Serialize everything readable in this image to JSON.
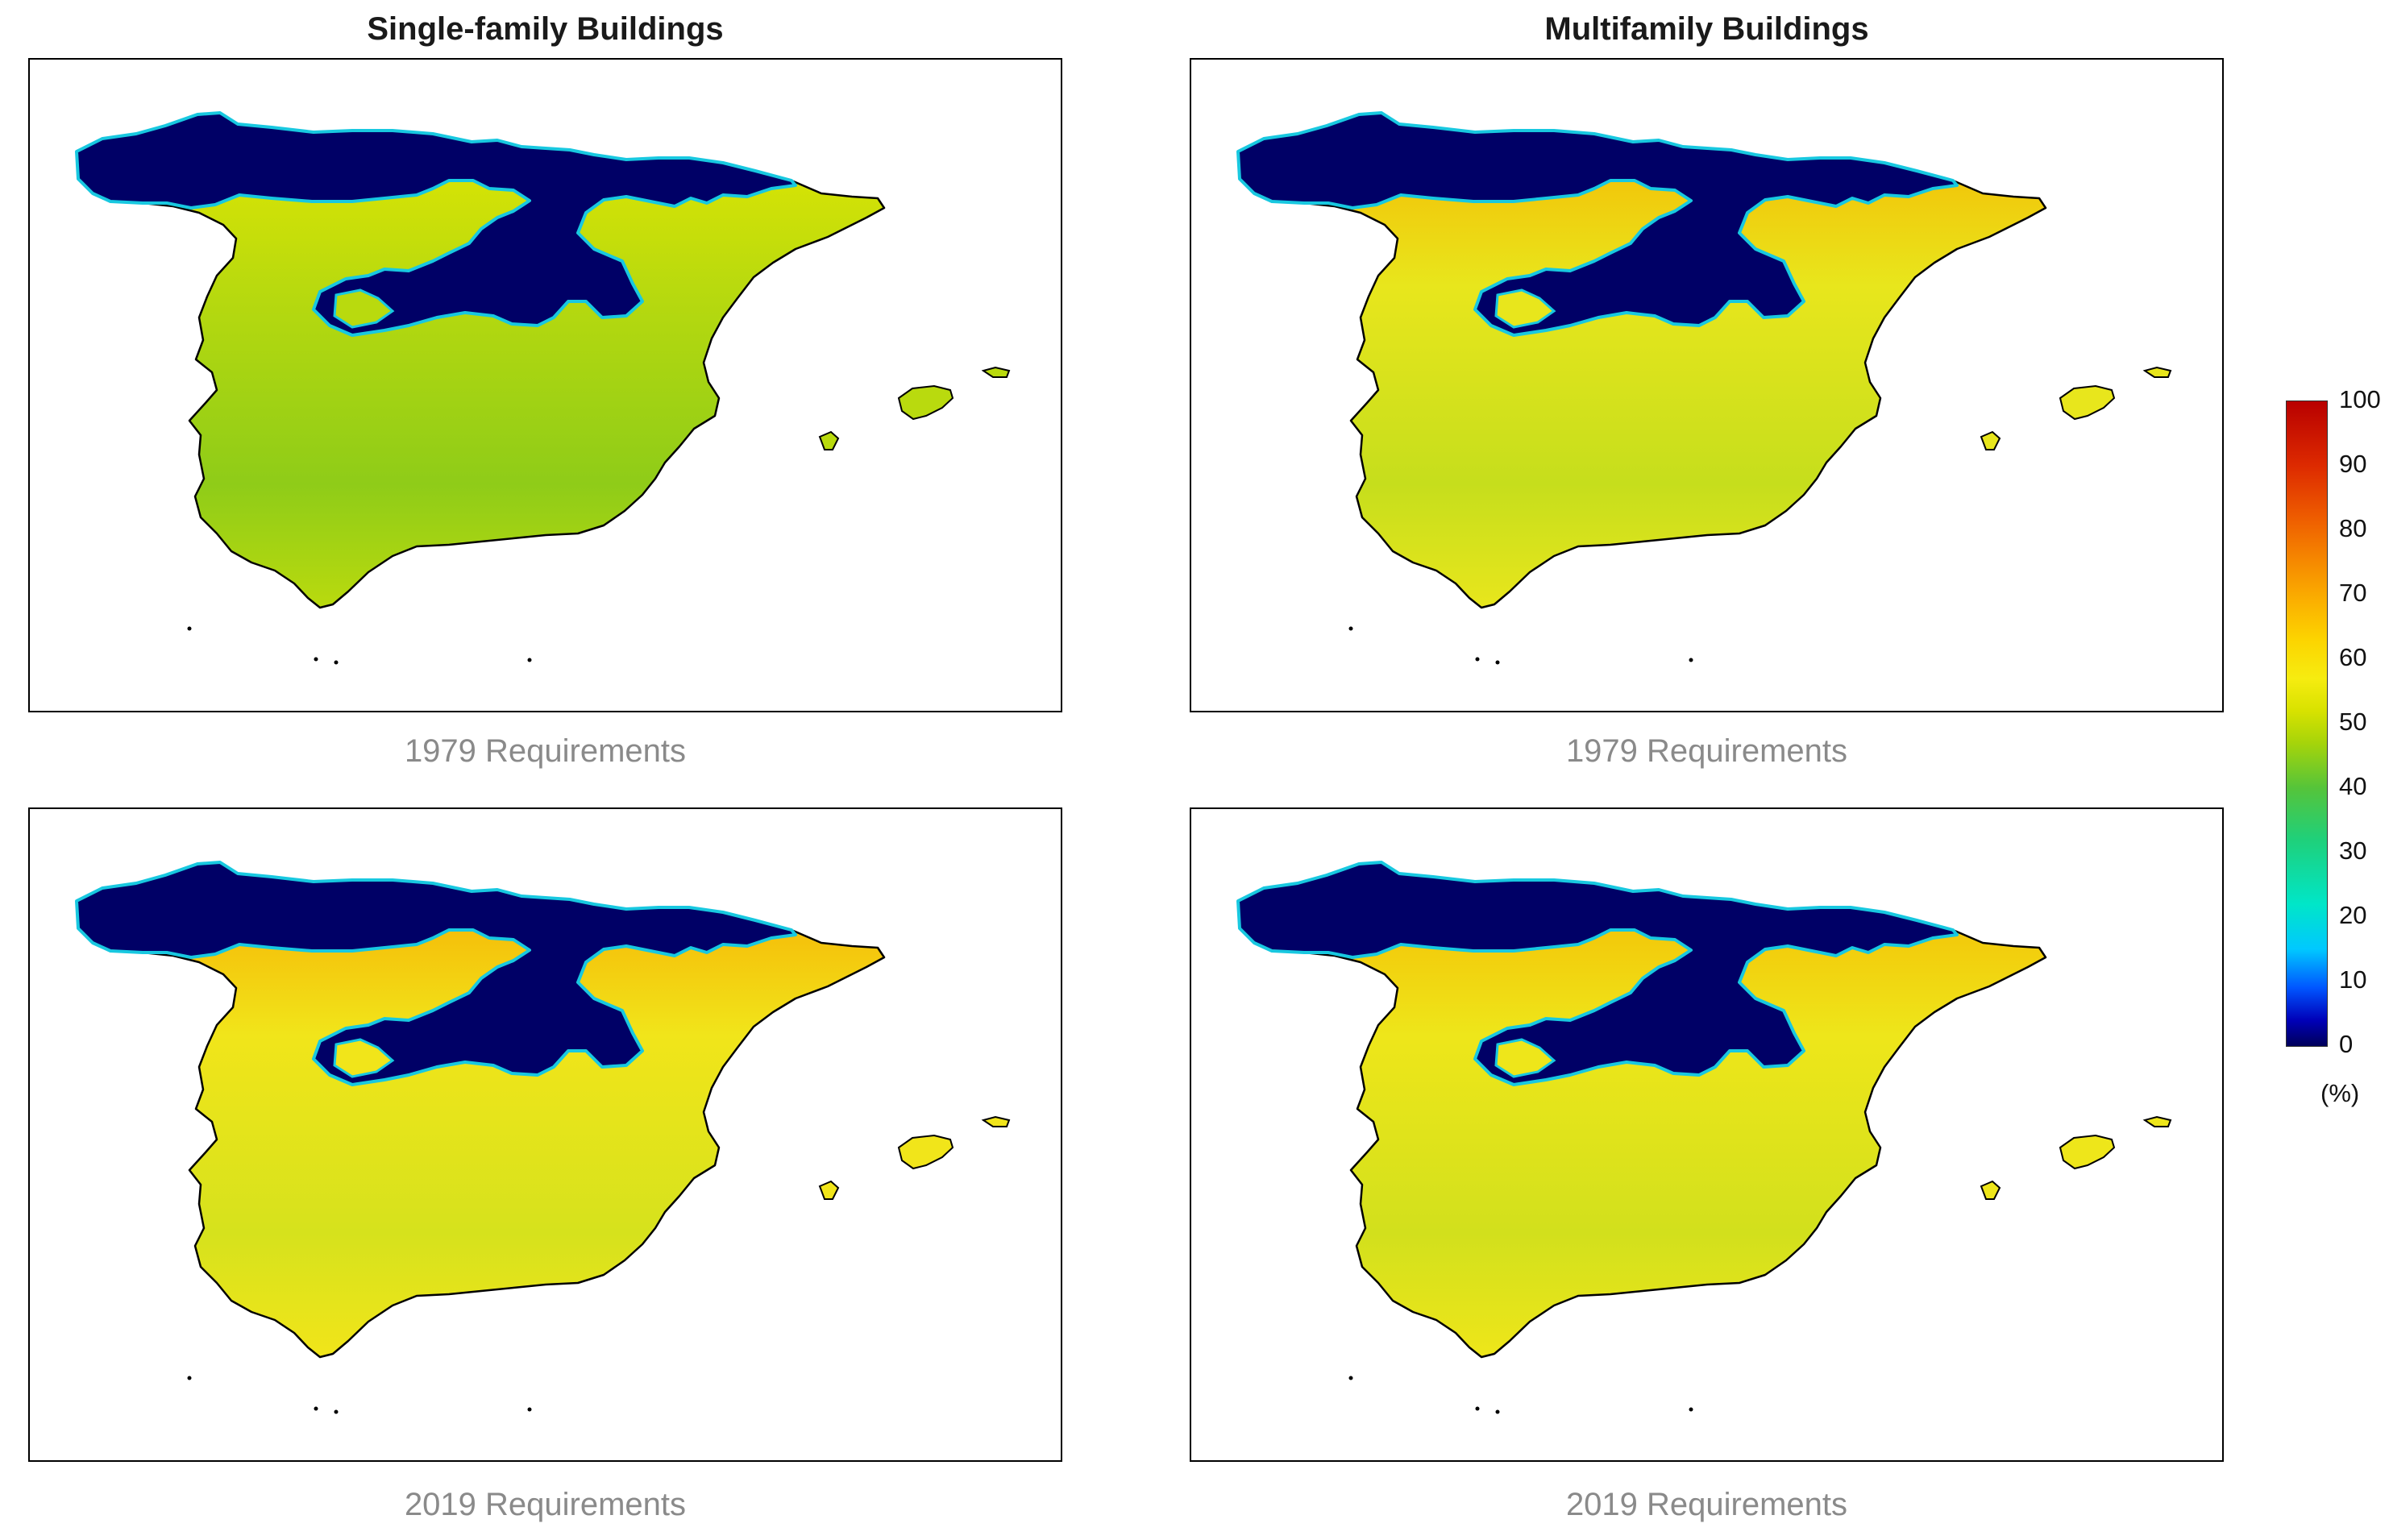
{
  "columns": [
    {
      "title": "Single-family Buildings"
    },
    {
      "title": "Multifamily Buildings"
    }
  ],
  "panels": [
    {
      "building": "single-family",
      "caption": "1979 Requirements",
      "fill_color": "#b9da0e",
      "south_color": "#8fcc18",
      "north_color": "#000066",
      "accent_color": "#e6e800"
    },
    {
      "building": "multifamily",
      "caption": "1979 Requirements",
      "fill_color": "#e8e61c",
      "south_color": "#c6de1c",
      "north_color": "#000066",
      "accent_color": "#f7b400"
    },
    {
      "building": "single-family",
      "caption": "2019 Requirements",
      "fill_color": "#f1e51a",
      "south_color": "#d6e21c",
      "north_color": "#000066",
      "accent_color": "#f7a800"
    },
    {
      "building": "multifamily",
      "caption": "2019 Requirements",
      "fill_color": "#eee61a",
      "south_color": "#d2e01c",
      "north_color": "#000066",
      "accent_color": "#f6b600"
    }
  ],
  "colorbar": {
    "ticks": [
      "100",
      "90",
      "80",
      "70",
      "60",
      "50",
      "40",
      "30",
      "20",
      "10",
      "0"
    ],
    "unit": "(%)",
    "range": [
      0,
      100
    ]
  }
}
